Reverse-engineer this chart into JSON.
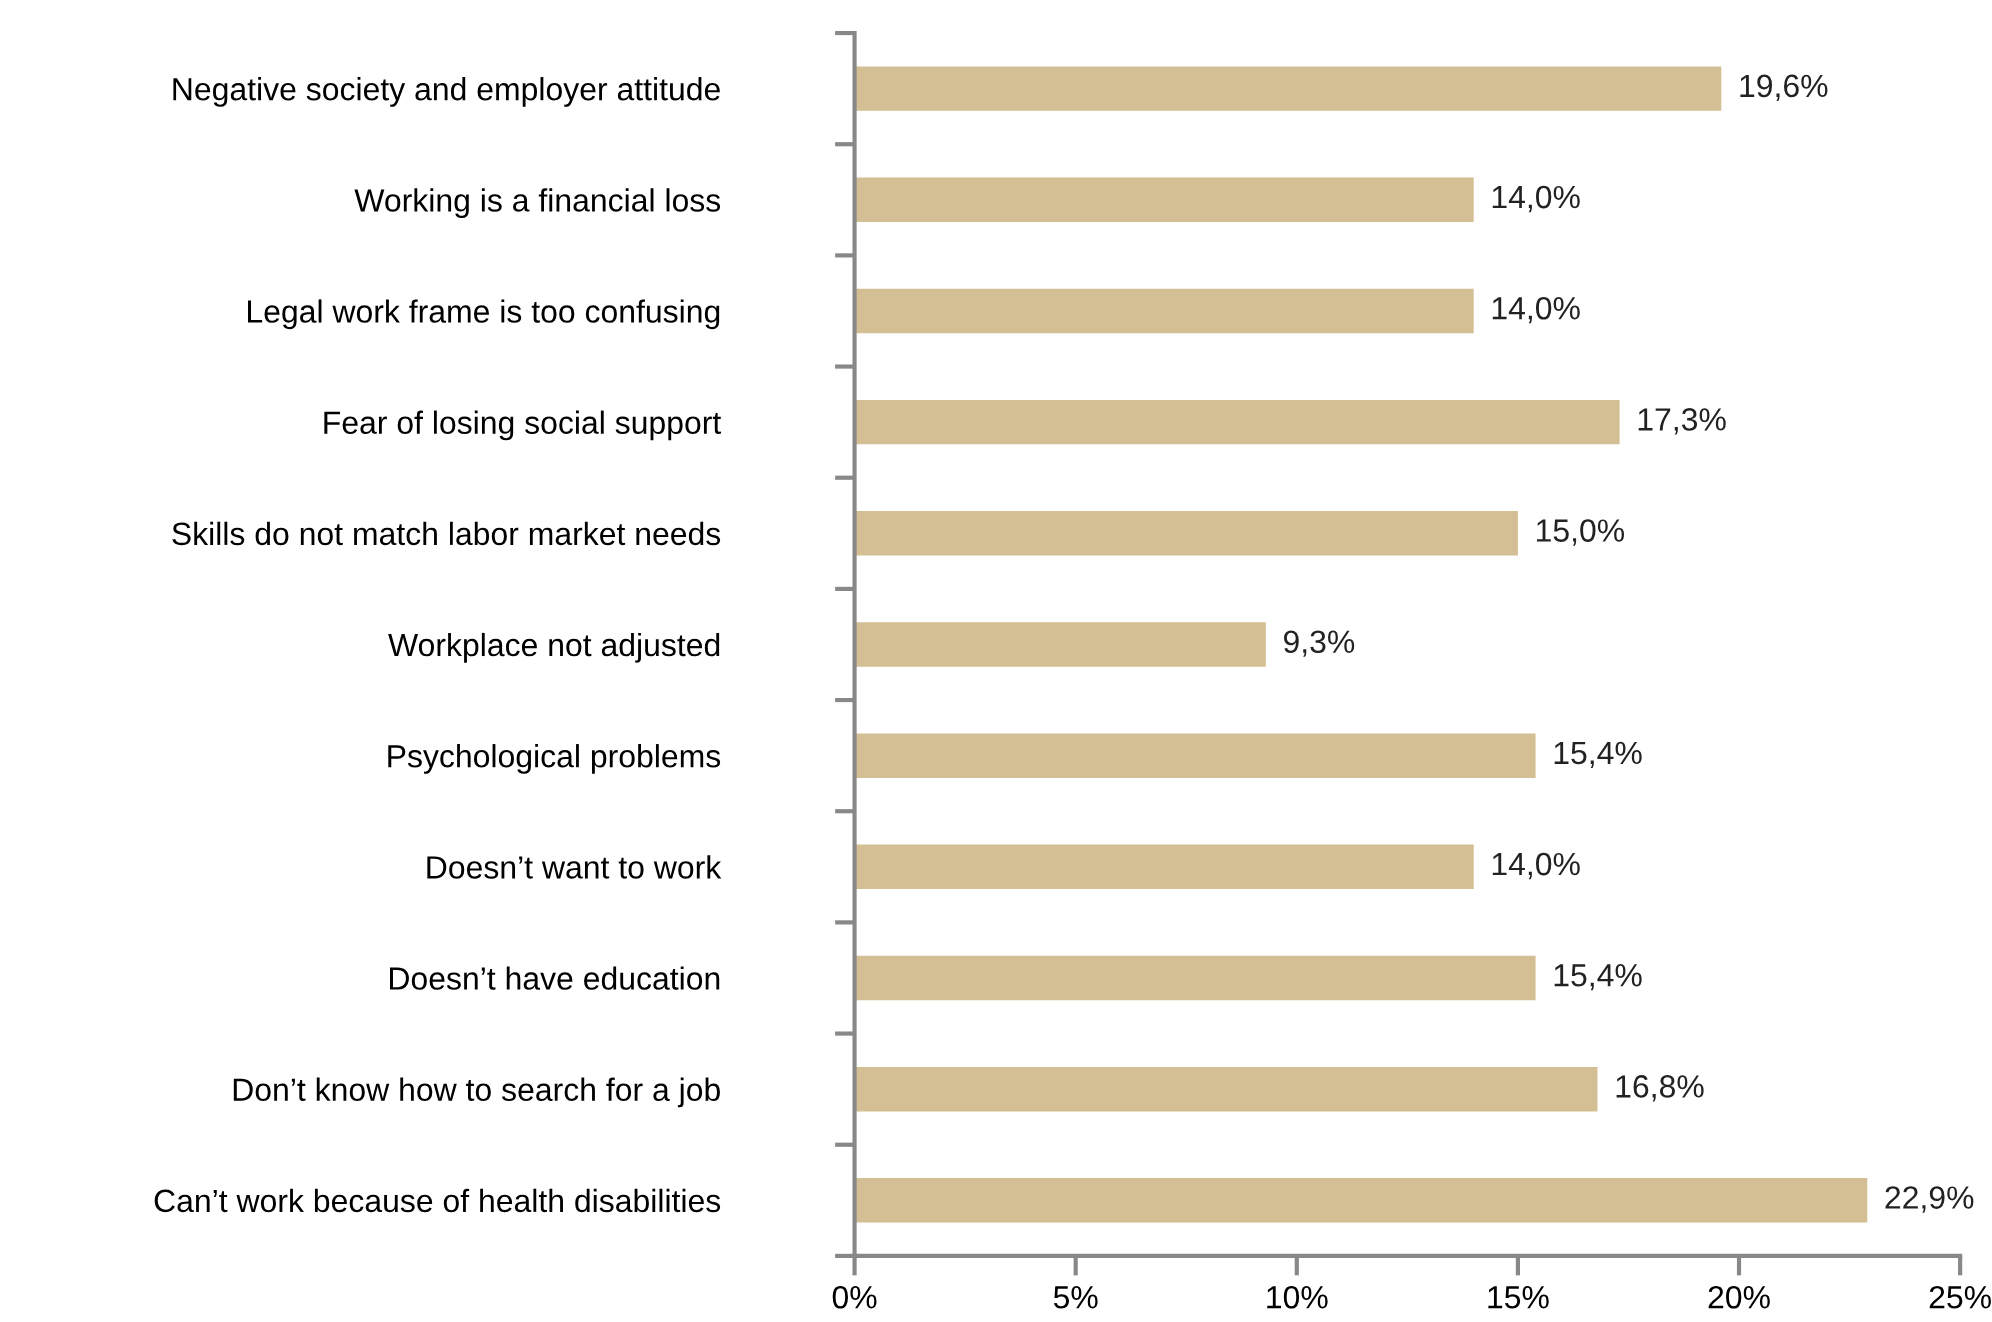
{
  "chart_data": {
    "type": "bar",
    "orientation": "horizontal",
    "categories": [
      "Negative society and employer attitude",
      "Working is a financial loss",
      "Legal work frame is too confusing",
      "Fear of losing social support",
      "Skills do not match labor market needs",
      "Workplace not adjusted",
      "Psychological problems",
      "Doesn’t want to work",
      "Doesn’t have education",
      "Don’t know how to search for a job",
      "Can’t work because of health disabilities"
    ],
    "values": [
      19.6,
      14.0,
      14.0,
      17.3,
      15.0,
      9.3,
      15.4,
      14.0,
      15.4,
      16.8,
      22.9
    ],
    "value_labels": [
      "19,6%",
      "14,0%",
      "14,0%",
      "17,3%",
      "15,0%",
      "9,3%",
      "15,4%",
      "14,0%",
      "15,4%",
      "16,8%",
      "22,9%"
    ],
    "color": "#d4bf94",
    "xlim": [
      0,
      25
    ],
    "xticks": [
      {
        "value": 0,
        "label": "0%"
      },
      {
        "value": 5,
        "label": "5%"
      },
      {
        "value": 10,
        "label": "10%"
      },
      {
        "value": 15,
        "label": "15%"
      },
      {
        "value": 20,
        "label": "20%"
      },
      {
        "value": 25,
        "label": "25%"
      }
    ],
    "grid": false,
    "legend": false
  }
}
